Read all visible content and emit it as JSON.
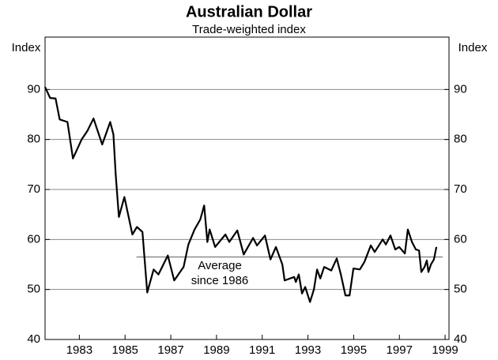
{
  "chart_data": {
    "type": "line",
    "title": "Australian Dollar",
    "subtitle": "Trade-weighted index",
    "y_label": "Index",
    "y2_label": "Index",
    "xlim": [
      1982,
      1999.67
    ],
    "ylim": [
      40,
      100
    ],
    "xticks": [
      {
        "value": 1983.5,
        "label": "1983"
      },
      {
        "value": 1985.5,
        "label": "1985"
      },
      {
        "value": 1987.5,
        "label": "1987"
      },
      {
        "value": 1989.5,
        "label": "1989"
      },
      {
        "value": 1991.5,
        "label": "1991"
      },
      {
        "value": 1993.5,
        "label": "1993"
      },
      {
        "value": 1995.5,
        "label": "1995"
      },
      {
        "value": 1997.5,
        "label": "1997"
      },
      {
        "value": 1999.5,
        "label": "1999"
      }
    ],
    "yticks": [
      40,
      50,
      60,
      70,
      80,
      90
    ],
    "grid": true,
    "series": [
      {
        "name": "Trade-weighted index",
        "color": "#000000",
        "x": [
          1982.0,
          1982.22,
          1982.46,
          1982.64,
          1982.98,
          1983.22,
          1983.6,
          1983.85,
          1984.12,
          1984.5,
          1984.85,
          1984.99,
          1985.09,
          1985.23,
          1985.47,
          1985.82,
          1986.02,
          1986.26,
          1986.47,
          1986.75,
          1986.96,
          1987.37,
          1987.65,
          1988.06,
          1988.27,
          1988.54,
          1988.79,
          1988.96,
          1989.1,
          1989.2,
          1989.44,
          1989.89,
          1990.06,
          1990.41,
          1990.69,
          1991.1,
          1991.27,
          1991.62,
          1991.86,
          1992.1,
          1992.38,
          1992.48,
          1992.9,
          1992.97,
          1993.1,
          1993.24,
          1993.38,
          1993.59,
          1993.76,
          1993.9,
          1994.04,
          1994.21,
          1994.52,
          1994.76,
          1994.94,
          1995.14,
          1995.32,
          1995.49,
          1995.77,
          1995.97,
          1996.25,
          1996.42,
          1996.63,
          1996.77,
          1996.91,
          1997.11,
          1997.32,
          1997.49,
          1997.74,
          1997.87,
          1998.05,
          1998.22,
          1998.36,
          1998.46,
          1998.6,
          1998.7,
          1998.77,
          1998.88,
          1999.01,
          1999.12
        ],
        "values": [
          90.5,
          88.3,
          88.2,
          84,
          83.5,
          76.2,
          80,
          81.7,
          84.2,
          79,
          83.5,
          81,
          73,
          64.5,
          68.5,
          61,
          62.5,
          61.5,
          49.4,
          54,
          53,
          56.8,
          51.8,
          54.5,
          59,
          62,
          64,
          66.8,
          59.5,
          62,
          58.5,
          61,
          59.5,
          61.8,
          57,
          60.3,
          58.8,
          60.8,
          56,
          58.5,
          55,
          51.8,
          52.5,
          51.5,
          53,
          49.2,
          50.5,
          47.5,
          50,
          54,
          52.2,
          54.5,
          53.8,
          56.2,
          53,
          48.8,
          48.8,
          54.2,
          54,
          55.5,
          58.8,
          57.5,
          59,
          60,
          59,
          60.8,
          58,
          58.5,
          57.2,
          62,
          59.5,
          58,
          57.8,
          53.5,
          54.5,
          55.8,
          53.5,
          55,
          56,
          58.5
        ]
      }
    ],
    "average": {
      "label": [
        "Average",
        "since 1986"
      ],
      "value": 56.5,
      "x": [
        1986.0,
        1999.4
      ]
    }
  }
}
